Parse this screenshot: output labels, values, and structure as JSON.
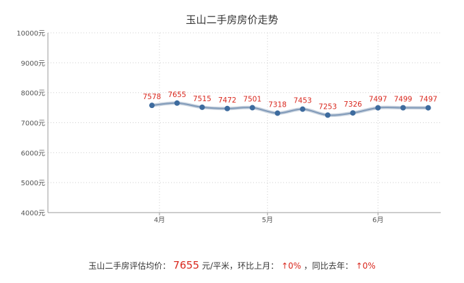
{
  "chart_data": {
    "type": "line",
    "title": "玉山二手房房价走势",
    "xlabel": "",
    "ylabel": "",
    "y_unit": "元",
    "ylim": [
      4000,
      10000
    ],
    "yticks": [
      4000,
      5000,
      6000,
      7000,
      8000,
      9000,
      10000
    ],
    "ytick_labels": [
      "4000元",
      "5000元",
      "6000元",
      "7000元",
      "8000元",
      "9000元",
      "10000元"
    ],
    "xticks": [
      {
        "label": "4月",
        "index": 0.3
      },
      {
        "label": "5月",
        "index": 4.6
      },
      {
        "label": "6月",
        "index": 9.0
      }
    ],
    "grid": true,
    "legend": "none",
    "series": [
      {
        "values": [
          7578,
          7655,
          7515,
          7472,
          7501,
          7318,
          7453,
          7253,
          7326,
          7497,
          7499,
          7497
        ],
        "labels": [
          "7578",
          "7655",
          "7515",
          "7472",
          "7501",
          "7318",
          "7453",
          "7253",
          "7326",
          "7497",
          "7499",
          "7497"
        ],
        "color": "#3d6b9e",
        "label_color": "#d9261c"
      }
    ]
  },
  "summary": {
    "prefix": "玉山二手房评估均价：",
    "price": "7655",
    "unit": "元/平米，环比上月：",
    "mom": "↑0%",
    "sep": "，同比去年：",
    "yoy": "↑0%"
  }
}
